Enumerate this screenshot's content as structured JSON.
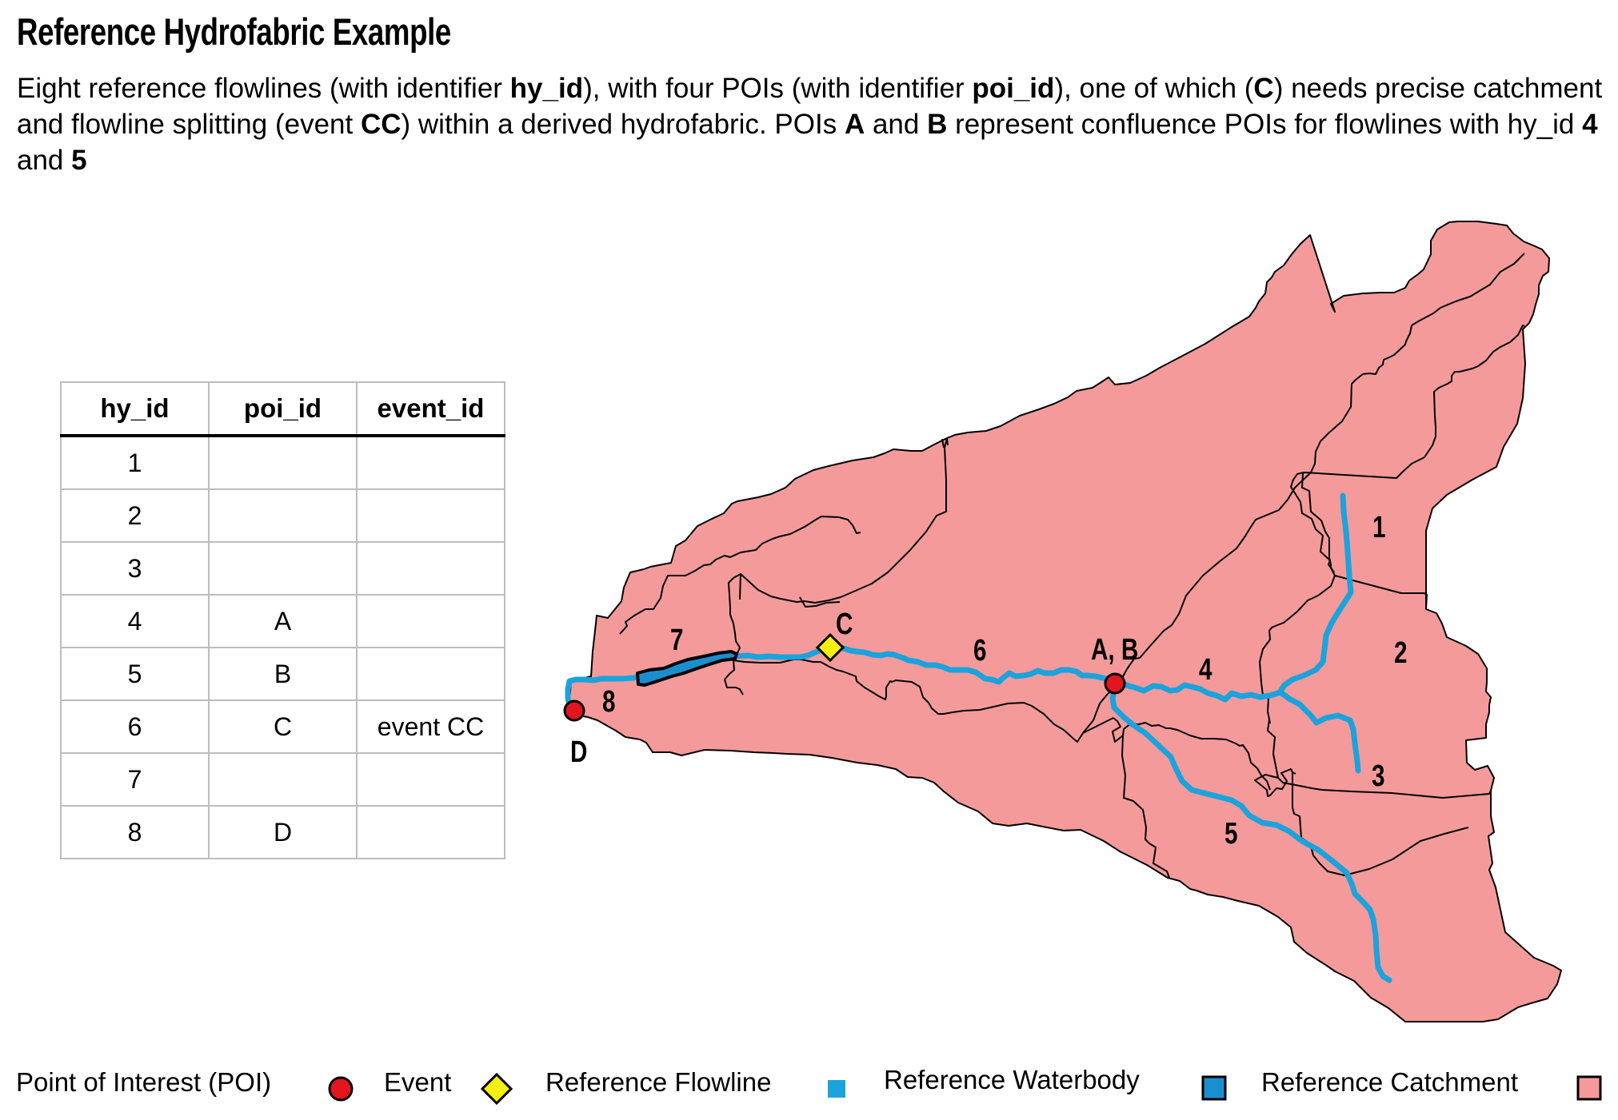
{
  "title": "Reference Hydrofabric Example",
  "description": {
    "part1": "Eight reference flowlines (with identifier ",
    "b1": "hy_id",
    "part2": "), with four POIs (with identifier ",
    "b2": "poi_id",
    "part3": "), one of which (",
    "b3": "C",
    "part4": ") needs precise catchment and flowline splitting (event ",
    "b4": "CC",
    "part5": ") within a derived hydrofabric.  POIs ",
    "b5": "A",
    "part6": " and ",
    "b6": "B",
    "part7": " represent confluence POIs for flowlines with hy_id ",
    "b7": "4",
    "part8": " and ",
    "b8": "5"
  },
  "table": {
    "headers": [
      "hy_id",
      "poi_id",
      "event_id"
    ],
    "rows": [
      [
        "1",
        "",
        ""
      ],
      [
        "2",
        "",
        ""
      ],
      [
        "3",
        "",
        ""
      ],
      [
        "4",
        "A",
        ""
      ],
      [
        "5",
        "B",
        ""
      ],
      [
        "6",
        "C",
        "event CC"
      ],
      [
        "7",
        "",
        ""
      ],
      [
        "8",
        "D",
        ""
      ]
    ]
  },
  "map_labels": {
    "flowline_1": "1",
    "flowline_2": "2",
    "flowline_3": "3",
    "flowline_4": "4",
    "flowline_5": "5",
    "flowline_6": "6",
    "flowline_7": "7",
    "flowline_8": "8",
    "poi_ab": "A, B",
    "poi_c": "C",
    "poi_d": "D"
  },
  "colors": {
    "catchment_fill": "#f49a9a",
    "flowline": "#1aa3dc",
    "waterbody": "#1a8fcf",
    "poi": "#e3151f",
    "event": "#f5ee12"
  },
  "legend": {
    "poi": "Point of Interest (POI)",
    "event": "Event",
    "flowline": "Reference Flowline",
    "waterbody": "Reference Waterbody",
    "catchment": "Reference Catchment"
  }
}
